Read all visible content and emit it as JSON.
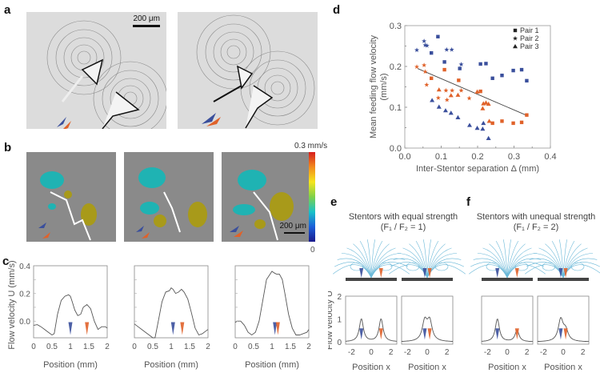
{
  "panels": {
    "a": {
      "label": "a",
      "scale_bar": "200 μm"
    },
    "b": {
      "label": "b",
      "colorbar_max": "0.3 mm/s",
      "colorbar_min": "0",
      "scale_bar": "200 μm"
    },
    "c": {
      "label": "c"
    },
    "d": {
      "label": "d"
    },
    "e": {
      "label": "e",
      "title_line1": "Stentors with equal strength",
      "title_line2": "(F₁ / F₂ = 1)"
    },
    "f": {
      "label": "f",
      "title_line1": "Stentors with unequal strength",
      "title_line2": "(F₁ / F₂ = 2)"
    }
  },
  "colors": {
    "blue": "#3a4f9c",
    "orange": "#e0622a",
    "stream": "#6ab8d8",
    "axis": "#888888"
  },
  "chart_data": [
    {
      "id": "c1",
      "type": "line",
      "xlabel": "Position (mm)",
      "ylabel": "Flow velocity U (mm/s)",
      "xlim": [
        0,
        2
      ],
      "ylim": [
        -0.12,
        0.4
      ],
      "xticks": [
        "0",
        "0.5",
        "1",
        "1.5",
        "2"
      ],
      "yticks": [
        "0.0",
        "0.2",
        "0.4"
      ],
      "x": [
        0,
        0.1,
        0.2,
        0.3,
        0.4,
        0.5,
        0.56,
        0.65,
        0.75,
        0.85,
        0.95,
        1.0,
        1.05,
        1.12,
        1.2,
        1.28,
        1.35,
        1.45,
        1.55,
        1.65,
        1.75,
        1.85,
        1.95,
        2.0
      ],
      "y": [
        -0.03,
        -0.025,
        -0.04,
        -0.06,
        -0.08,
        -0.1,
        -0.09,
        0.05,
        0.15,
        0.18,
        0.19,
        0.18,
        0.14,
        0.08,
        0.04,
        0.05,
        0.1,
        0.12,
        0.09,
        0.0,
        -0.06,
        -0.04,
        -0.04,
        -0.05
      ],
      "markers": [
        1.0,
        1.45
      ]
    },
    {
      "id": "c2",
      "type": "line",
      "xlabel": "Position (mm)",
      "xlim": [
        0,
        2
      ],
      "ylim": [
        -0.12,
        0.4
      ],
      "xticks": [
        "0",
        "0.5",
        "1",
        "1.5",
        "2"
      ],
      "x": [
        0,
        0.1,
        0.2,
        0.3,
        0.4,
        0.5,
        0.56,
        0.65,
        0.75,
        0.85,
        0.95,
        1.0,
        1.05,
        1.12,
        1.2,
        1.28,
        1.35,
        1.45,
        1.55,
        1.65,
        1.75,
        1.85,
        1.95,
        2.0
      ],
      "y": [
        -0.02,
        -0.04,
        -0.06,
        -0.08,
        -0.1,
        -0.12,
        -0.12,
        0.0,
        0.14,
        0.21,
        0.22,
        0.24,
        0.23,
        0.2,
        0.21,
        0.23,
        0.21,
        0.16,
        0.06,
        -0.05,
        -0.1,
        -0.09,
        -0.07,
        -0.06
      ],
      "markers": [
        1.05,
        1.3
      ]
    },
    {
      "id": "c3",
      "type": "line",
      "xlabel": "Position (mm)",
      "xlim": [
        0,
        2
      ],
      "ylim": [
        -0.12,
        0.4
      ],
      "xticks": [
        "0",
        "0.5",
        "1",
        "1.5",
        "2"
      ],
      "x": [
        0,
        0.05,
        0.15,
        0.25,
        0.35,
        0.45,
        0.55,
        0.65,
        0.75,
        0.85,
        0.95,
        1.0,
        1.05,
        1.12,
        1.2,
        1.28,
        1.35,
        1.45,
        1.55,
        1.65,
        1.75,
        1.85,
        1.95,
        2.0
      ],
      "y": [
        -0.01,
        0.0,
        0.0,
        -0.03,
        -0.08,
        -0.1,
        -0.08,
        0.0,
        0.15,
        0.3,
        0.34,
        0.36,
        0.35,
        0.34,
        0.34,
        0.3,
        0.2,
        0.05,
        -0.05,
        -0.1,
        -0.1,
        -0.09,
        -0.08,
        -0.06
      ],
      "markers": [
        1.08,
        1.16
      ]
    },
    {
      "id": "d",
      "type": "scatter",
      "xlabel": "Inter-Stentor separation Δ (mm)",
      "ylabel": "Mean feeding flow velocity (mm/s)",
      "xlim": [
        0,
        0.4
      ],
      "ylim": [
        0,
        0.3
      ],
      "xticks": [
        "0.0",
        "0.1",
        "0.2",
        "0.3",
        "0.4"
      ],
      "yticks": [
        "0.0",
        "0.1",
        "0.2",
        "0.3"
      ],
      "legend": {
        "position": "top-right",
        "entries": [
          "Pair 1",
          "Pair 2",
          "Pair 3"
        ]
      },
      "series": [
        {
          "name": "Pair 1",
          "marker": "square",
          "color": "blue",
          "points": [
            [
              0.091,
              0.273
            ],
            [
              0.073,
              0.233
            ],
            [
              0.109,
              0.211
            ],
            [
              0.151,
              0.195
            ],
            [
              0.208,
              0.206
            ],
            [
              0.223,
              0.207
            ],
            [
              0.241,
              0.171
            ],
            [
              0.267,
              0.178
            ],
            [
              0.298,
              0.19
            ],
            [
              0.321,
              0.192
            ],
            [
              0.335,
              0.165
            ]
          ]
        },
        {
          "name": "Pair 1",
          "marker": "square",
          "color": "orange",
          "points": [
            [
              0.073,
              0.171
            ],
            [
              0.109,
              0.192
            ],
            [
              0.148,
              0.166
            ],
            [
              0.208,
              0.139
            ],
            [
              0.241,
              0.061
            ],
            [
              0.267,
              0.066
            ],
            [
              0.298,
              0.061
            ],
            [
              0.321,
              0.063
            ],
            [
              0.335,
              0.081
            ]
          ]
        },
        {
          "name": "Pair 2",
          "marker": "star",
          "color": "blue",
          "points": [
            [
              0.033,
              0.24
            ],
            [
              0.053,
              0.262
            ],
            [
              0.056,
              0.252
            ],
            [
              0.061,
              0.251
            ],
            [
              0.115,
              0.241
            ],
            [
              0.129,
              0.241
            ],
            [
              0.155,
              0.205
            ]
          ]
        },
        {
          "name": "Pair 2",
          "marker": "star",
          "color": "orange",
          "points": [
            [
              0.033,
              0.199
            ],
            [
              0.053,
              0.203
            ],
            [
              0.056,
              0.187
            ],
            [
              0.06,
              0.155
            ],
            [
              0.092,
              0.123
            ],
            [
              0.113,
              0.141
            ],
            [
              0.116,
              0.118
            ],
            [
              0.13,
              0.141
            ],
            [
              0.155,
              0.141
            ],
            [
              0.177,
              0.122
            ]
          ]
        },
        {
          "name": "Pair 3",
          "marker": "triangle",
          "color": "blue",
          "points": [
            [
              0.075,
              0.117
            ],
            [
              0.094,
              0.101
            ],
            [
              0.112,
              0.092
            ],
            [
              0.127,
              0.086
            ],
            [
              0.146,
              0.075
            ],
            [
              0.178,
              0.056
            ],
            [
              0.199,
              0.049
            ],
            [
              0.214,
              0.047
            ],
            [
              0.216,
              0.061
            ],
            [
              0.23,
              0.024
            ]
          ]
        },
        {
          "name": "Pair 3",
          "marker": "triangle",
          "color": "orange",
          "points": [
            [
              0.094,
              0.143
            ],
            [
              0.127,
              0.129
            ],
            [
              0.146,
              0.13
            ],
            [
              0.199,
              0.138
            ],
            [
              0.216,
              0.109
            ],
            [
              0.223,
              0.111
            ],
            [
              0.23,
              0.108
            ],
            [
              0.214,
              0.097
            ],
            [
              0.232,
              0.066
            ]
          ]
        }
      ],
      "trendline": [
        [
          0.035,
          0.195
        ],
        [
          0.335,
          0.08
        ]
      ]
    },
    {
      "id": "e1",
      "type": "line",
      "xlabel": "Position x",
      "ylabel": "Flow velocity U",
      "xlim": [
        -2.6,
        2.6
      ],
      "ylim": [
        -0.1,
        2
      ],
      "xticks": [
        "-2",
        "0",
        "2"
      ],
      "yticks": [
        "0",
        "1",
        "2"
      ],
      "peaks": [
        {
          "x": -1,
          "h": 1.0,
          "w": 0.25
        },
        {
          "x": 1,
          "h": 1.0,
          "w": 0.25
        }
      ],
      "markers": [
        -1,
        1
      ],
      "marker_colors": [
        "blue",
        "orange"
      ]
    },
    {
      "id": "e2",
      "type": "line",
      "xlabel": "Position x",
      "xlim": [
        -2.6,
        2.6
      ],
      "ylim": [
        -0.1,
        2
      ],
      "xticks": [
        "-2",
        "0",
        "2"
      ],
      "peaks": [
        {
          "x": -0.25,
          "h": 0.85,
          "w": 0.3
        },
        {
          "x": 0.25,
          "h": 0.85,
          "w": 0.3
        }
      ],
      "markers": [
        -0.25,
        0.25
      ],
      "marker_colors": [
        "blue",
        "orange"
      ]
    },
    {
      "id": "f1",
      "type": "line",
      "xlabel": "Position x",
      "xlim": [
        -2.6,
        2.6
      ],
      "ylim": [
        -0.1,
        2
      ],
      "xticks": [
        "-2",
        "0",
        "2"
      ],
      "peaks": [
        {
          "x": -1,
          "h": 1.0,
          "w": 0.25
        },
        {
          "x": 1,
          "h": 0.5,
          "w": 0.25
        }
      ],
      "markers": [
        -1,
        1
      ],
      "marker_colors": [
        "blue",
        "orange"
      ]
    },
    {
      "id": "f2",
      "type": "line",
      "xlabel": "Position x",
      "xlim": [
        -2.6,
        2.6
      ],
      "ylim": [
        -0.1,
        2
      ],
      "xticks": [
        "-2",
        "0",
        "2"
      ],
      "peaks": [
        {
          "x": -0.25,
          "h": 0.95,
          "w": 0.3
        },
        {
          "x": 0.25,
          "h": 0.45,
          "w": 0.3
        }
      ],
      "markers": [
        -0.25,
        0.25
      ],
      "marker_colors": [
        "blue",
        "orange"
      ]
    }
  ]
}
